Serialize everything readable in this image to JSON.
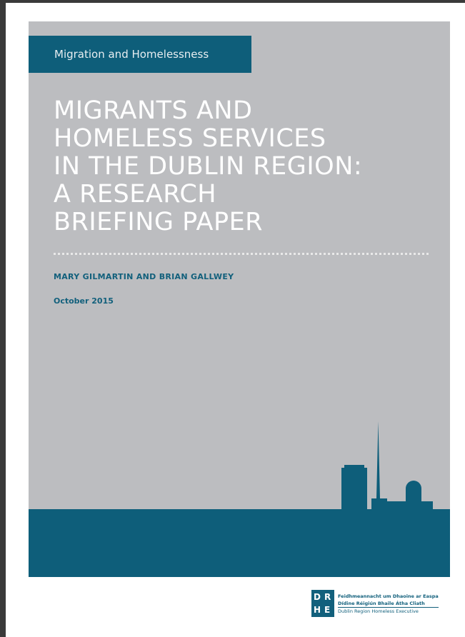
{
  "cover": {
    "series_label": "Migration and Homelessness",
    "title_lines": [
      "MIGRANTS AND",
      "HOMELESS SERVICES",
      "IN THE DUBLIN REGION:",
      "A RESEARCH",
      "BRIEFING PAPER"
    ],
    "authors": "MARY GILMARTIN AND BRIAN GALLWEY",
    "date": "October 2015"
  },
  "logo": {
    "letters": [
      "D",
      "R",
      "H",
      "E"
    ],
    "lines": [
      "Feidhmeannacht um Dhaoine ar Easpa",
      "Dídine Réigiún Bhaile Átha Cliath",
      "Dublin Region Homeless Executive"
    ]
  }
}
